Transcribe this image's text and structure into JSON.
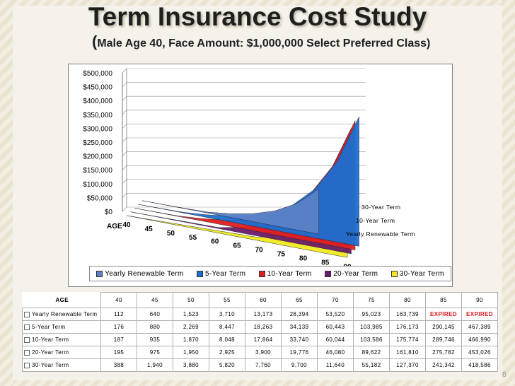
{
  "title": "Term Insurance Cost Study",
  "subtitle": {
    "paren": "(",
    "text": "Male Age 40, Face Amount: $1,000,000 Select Preferred Class)"
  },
  "page_number": "6",
  "colors": {
    "Yearly Renewable Term": "#5b82c8",
    "5-Year Term": "#1c6fcf",
    "10-Year Term": "#e02020",
    "20-Year Term": "#6a1b6a",
    "30-Year Term": "#f2ea1e"
  },
  "chart_data": {
    "type": "area",
    "subtype": "3d-area",
    "title": "",
    "xlabel": "AGE",
    "ylabel": "",
    "ylim": [
      0,
      500000
    ],
    "yticks": [
      "$0",
      "$50,000",
      "$100,000",
      "$150,000",
      "$200,000",
      "$250,000",
      "$300,000",
      "$350,000",
      "$400,000",
      "$450,000",
      "$500,000"
    ],
    "x": [
      40,
      45,
      50,
      55,
      60,
      65,
      70,
      75,
      80,
      85,
      90
    ],
    "depth_labels": [
      "30-Year Term",
      "10-Year Term",
      "Yearly Renewable Term"
    ],
    "legend_position": "bottom",
    "series": [
      {
        "name": "Yearly Renewable Term",
        "values": [
          112,
          640,
          1523,
          3710,
          13173,
          28394,
          53520,
          95023,
          163739,
          null,
          null
        ]
      },
      {
        "name": "5-Year Term",
        "values": [
          176,
          880,
          2269,
          8447,
          18263,
          34139,
          60443,
          103985,
          176173,
          290145,
          467389
        ]
      },
      {
        "name": "10-Year Term",
        "values": [
          187,
          935,
          1870,
          8048,
          17864,
          33740,
          60044,
          103586,
          175774,
          289746,
          466990
        ]
      },
      {
        "name": "20-Year Term",
        "values": [
          195,
          975,
          1950,
          2925,
          3900,
          19776,
          46080,
          89622,
          161810,
          275782,
          453026
        ]
      },
      {
        "name": "30-Year Term",
        "values": [
          388,
          1940,
          3880,
          5820,
          7760,
          9700,
          11640,
          55182,
          127370,
          241342,
          418586
        ]
      }
    ]
  },
  "table": {
    "header_label": "AGE",
    "ages": [
      "40",
      "45",
      "50",
      "55",
      "60",
      "65",
      "70",
      "75",
      "80",
      "85",
      "90"
    ],
    "rows": [
      {
        "label": "Yearly Renewable Term",
        "cells": [
          "112",
          "640",
          "1,523",
          "3,710",
          "13,173",
          "28,394",
          "53,520",
          "95,023",
          "163,739",
          "EXPIRED",
          "EXPIRED"
        ]
      },
      {
        "label": "5-Year Term",
        "cells": [
          "176",
          "880",
          "2,269",
          "8,447",
          "18,263",
          "34,139",
          "60,443",
          "103,985",
          "176,173",
          "290,145",
          "467,389"
        ]
      },
      {
        "label": "10-Year Term",
        "cells": [
          "187",
          "935",
          "1,870",
          "8,048",
          "17,864",
          "33,740",
          "60,044",
          "103,586",
          "175,774",
          "289,746",
          "466,990"
        ]
      },
      {
        "label": "20-Year Term",
        "cells": [
          "195",
          "975",
          "1,950",
          "2,925",
          "3,900",
          "19,776",
          "46,080",
          "89,622",
          "161,810",
          "275,782",
          "453,026"
        ]
      },
      {
        "label": "30-Year Term",
        "cells": [
          "388",
          "1,940",
          "3,880",
          "5,820",
          "7,760",
          "9,700",
          "11,640",
          "55,182",
          "127,370",
          "241,342",
          "418,586"
        ]
      }
    ]
  }
}
